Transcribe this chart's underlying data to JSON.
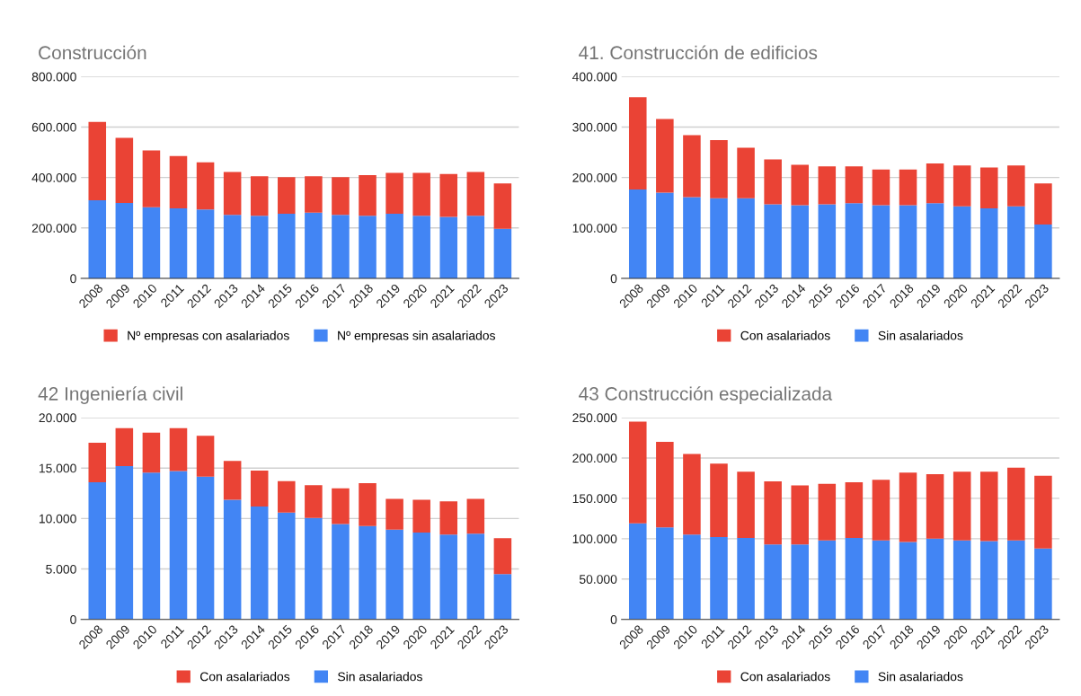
{
  "chart_data": [
    {
      "type": "bar",
      "stacked": true,
      "title": "Construcción",
      "categories": [
        "2008",
        "2009",
        "2010",
        "2011",
        "2012",
        "2013",
        "2014",
        "2015",
        "2016",
        "2017",
        "2018",
        "2019",
        "2020",
        "2021",
        "2022",
        "2023"
      ],
      "ylim": [
        0,
        800000
      ],
      "yticks": [
        {
          "value": 0,
          "label": "0"
        },
        {
          "value": 200000,
          "label": "200.000"
        },
        {
          "value": 400000,
          "label": "400.000"
        },
        {
          "value": 600000,
          "label": "600.000"
        },
        {
          "value": 800000,
          "label": "800.000"
        }
      ],
      "grid": "y",
      "legend": "bottom",
      "series": [
        {
          "name": "Nº empresas sin asalariados",
          "color": "#4285f4",
          "values": [
            310000,
            299000,
            282000,
            278000,
            273000,
            252000,
            248000,
            256000,
            261000,
            252000,
            248000,
            256000,
            248000,
            244000,
            248000,
            197000
          ]
        },
        {
          "name": "Nº empresas con asalariados",
          "color": "#ea4335",
          "values": [
            310000,
            258000,
            225000,
            207000,
            187000,
            170000,
            157000,
            145000,
            144000,
            149000,
            161000,
            162000,
            170000,
            170000,
            174000,
            179000
          ]
        }
      ]
    },
    {
      "type": "bar",
      "stacked": true,
      "title": "41. Construcción de edificios",
      "categories": [
        "2008",
        "2009",
        "2010",
        "2011",
        "2012",
        "2013",
        "2014",
        "2015",
        "2016",
        "2017",
        "2018",
        "2019",
        "2020",
        "2021",
        "2022",
        "2023"
      ],
      "ylim": [
        0,
        400000
      ],
      "yticks": [
        {
          "value": 0,
          "label": "0"
        },
        {
          "value": 100000,
          "label": "100.000"
        },
        {
          "value": 200000,
          "label": "200.000"
        },
        {
          "value": 300000,
          "label": "300.000"
        },
        {
          "value": 400000,
          "label": "400.000"
        }
      ],
      "grid": "y",
      "legend": "bottom",
      "series": [
        {
          "name": "Sin asalariados",
          "color": "#4285f4",
          "values": [
            176000,
            170000,
            161000,
            159000,
            159000,
            147000,
            145000,
            147000,
            149000,
            145000,
            145000,
            149000,
            143000,
            139000,
            143000,
            107000
          ]
        },
        {
          "name": "Con asalariados",
          "color": "#ea4335",
          "values": [
            183000,
            146000,
            123000,
            115000,
            100000,
            89000,
            80000,
            75000,
            73000,
            71000,
            71000,
            79000,
            81000,
            81000,
            81000,
            81000
          ]
        }
      ]
    },
    {
      "type": "bar",
      "stacked": true,
      "title": "42 Ingeniería civil",
      "categories": [
        "2008",
        "2009",
        "2010",
        "2011",
        "2012",
        "2013",
        "2014",
        "2015",
        "2016",
        "2017",
        "2018",
        "2019",
        "2020",
        "2021",
        "2022",
        "2023"
      ],
      "ylim": [
        0,
        20000
      ],
      "yticks": [
        {
          "value": 0,
          "label": "0"
        },
        {
          "value": 5000,
          "label": "5.000"
        },
        {
          "value": 10000,
          "label": "10.000"
        },
        {
          "value": 15000,
          "label": "15.000"
        },
        {
          "value": 20000,
          "label": "20.000"
        }
      ],
      "grid": "y",
      "legend": "bottom",
      "series": [
        {
          "name": "Sin asalariados",
          "color": "#4285f4",
          "values": [
            13600,
            15200,
            14550,
            14700,
            14150,
            11850,
            11200,
            10600,
            10050,
            9450,
            9250,
            8900,
            8600,
            8400,
            8500,
            4500
          ]
        },
        {
          "name": "Con asalariados",
          "color": "#ea4335",
          "values": [
            3900,
            3750,
            3950,
            4250,
            4050,
            3850,
            3550,
            3100,
            3250,
            3550,
            4250,
            3050,
            3250,
            3300,
            3450,
            3550
          ]
        }
      ]
    },
    {
      "type": "bar",
      "stacked": true,
      "title": "43 Construcción especializada",
      "categories": [
        "2008",
        "2009",
        "2010",
        "2011",
        "2012",
        "2013",
        "2014",
        "2015",
        "2016",
        "2017",
        "2018",
        "2019",
        "2020",
        "2021",
        "2022",
        "2023"
      ],
      "ylim": [
        0,
        250000
      ],
      "yticks": [
        {
          "value": 0,
          "label": "0"
        },
        {
          "value": 50000,
          "label": "50.000"
        },
        {
          "value": 100000,
          "label": "100.000"
        },
        {
          "value": 150000,
          "label": "150.000"
        },
        {
          "value": 200000,
          "label": "200.000"
        },
        {
          "value": 250000,
          "label": "250.000"
        }
      ],
      "grid": "y",
      "legend": "bottom",
      "series": [
        {
          "name": "Sin asalariados",
          "color": "#4285f4",
          "values": [
            119000,
            114000,
            105000,
            102000,
            101000,
            93000,
            93000,
            98000,
            101000,
            98000,
            96000,
            100000,
            98000,
            97000,
            98000,
            88000
          ]
        },
        {
          "name": "Con asalariados",
          "color": "#ea4335",
          "values": [
            126000,
            106000,
            100000,
            91000,
            82000,
            78000,
            73000,
            70000,
            69000,
            75000,
            86000,
            80000,
            85000,
            86000,
            90000,
            90000
          ]
        }
      ]
    }
  ]
}
